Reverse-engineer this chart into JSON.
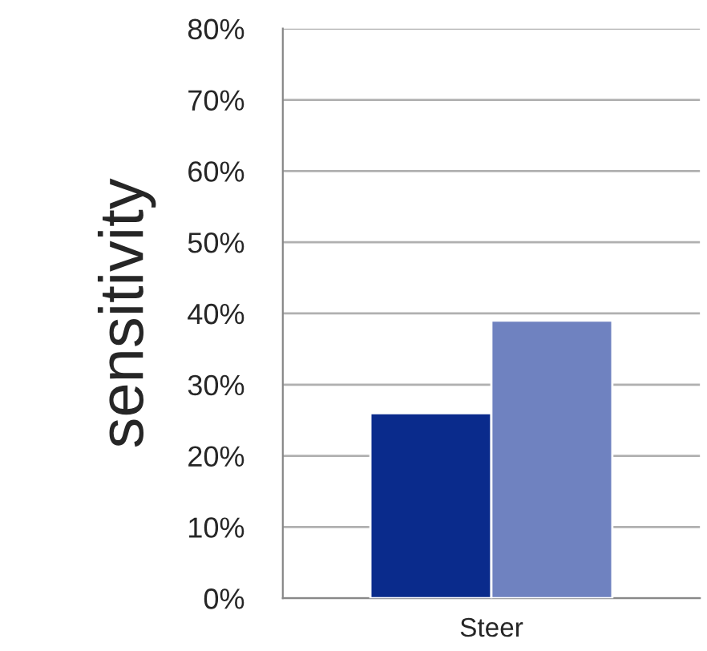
{
  "chart_data": {
    "type": "bar",
    "ylabel": "sensitivity",
    "categories": [
      "Steer"
    ],
    "series": [
      {
        "color": "#0a2b8c",
        "values": [
          26
        ]
      },
      {
        "color": "#6f82c0",
        "values": [
          39
        ]
      }
    ],
    "ylim": [
      0,
      80
    ],
    "yticks": [
      {
        "value": 0,
        "label": "0%"
      },
      {
        "value": 10,
        "label": "10%"
      },
      {
        "value": 20,
        "label": "20%"
      },
      {
        "value": 30,
        "label": "30%"
      },
      {
        "value": 40,
        "label": "40%"
      },
      {
        "value": 50,
        "label": "50%"
      },
      {
        "value": 60,
        "label": "60%"
      },
      {
        "value": 70,
        "label": "70%"
      },
      {
        "value": 80,
        "label": "80%"
      }
    ],
    "grid": "y"
  }
}
